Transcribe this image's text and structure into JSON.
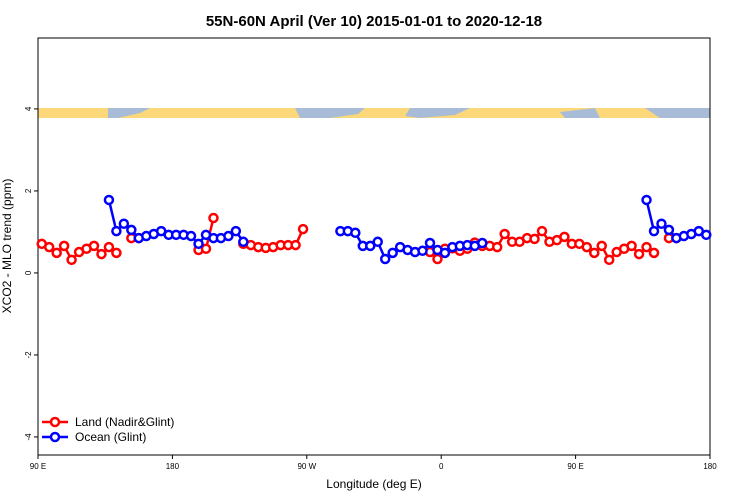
{
  "chart_data": {
    "type": "line",
    "title": "55N-60N April (Ver 10)   2015-01-01 to 2020-12-18",
    "x_label": "Longitude (deg E)",
    "y_label": "XCO2 - MLO trend (ppm)",
    "xlim": [
      90,
      540
    ],
    "ylim": [
      -4.44,
      5.73
    ],
    "xticks": [
      {
        "value": 90,
        "label": "90 E"
      },
      {
        "value": 180,
        "label": "180"
      },
      {
        "value": 270,
        "label": "90 W"
      },
      {
        "value": 360,
        "label": "0"
      },
      {
        "value": 450,
        "label": "90 E"
      },
      {
        "value": 540,
        "label": "180"
      }
    ],
    "yticks": [
      -4,
      -2,
      0,
      2,
      4
    ],
    "legend": "bottom-left",
    "x": [
      92.5,
      97.5,
      102.5,
      107.5,
      112.5,
      117.5,
      122.5,
      127.5,
      132.5,
      137.5,
      142.5,
      147.5,
      152.5,
      157.5,
      162.5,
      167.5,
      172.5,
      177.5,
      182.5,
      187.5,
      192.5,
      197.5,
      202.5,
      207.5,
      212.5,
      217.5,
      222.5,
      227.5,
      232.5,
      237.5,
      242.5,
      247.5,
      252.5,
      257.5,
      262.5,
      267.5,
      272.5,
      277.5,
      282.5,
      287.5,
      292.5,
      297.5,
      302.5,
      307.5,
      312.5,
      317.5,
      322.5,
      327.5,
      332.5,
      337.5,
      342.5,
      347.5,
      352.5,
      357.5,
      362.5,
      367.5,
      372.5,
      377.5,
      382.5,
      387.5,
      392.5,
      397.5,
      402.5,
      407.5,
      412.5,
      417.5,
      422.5,
      427.5,
      432.5,
      437.5,
      442.5,
      447.5,
      452.5,
      457.5,
      462.5,
      467.5,
      472.5,
      477.5,
      482.5,
      487.5,
      492.5,
      497.5,
      502.5,
      507.5,
      512.5,
      517.5,
      522.5,
      527.5,
      532.5,
      537.5
    ],
    "series": [
      {
        "name": "Land (Nadir&Glint)",
        "color": "#ff0000",
        "values": [
          0.71,
          0.63,
          0.49,
          0.66,
          0.32,
          0.51,
          0.59,
          0.66,
          0.46,
          0.63,
          0.49,
          null,
          0.85,
          0.85,
          null,
          null,
          null,
          null,
          null,
          null,
          null,
          0.56,
          0.59,
          1.34,
          null,
          null,
          null,
          0.71,
          0.68,
          0.63,
          0.61,
          0.63,
          0.68,
          0.68,
          0.68,
          1.07,
          null,
          null,
          null,
          null,
          null,
          null,
          null,
          null,
          null,
          null,
          null,
          null,
          null,
          null,
          null,
          null,
          0.51,
          0.34,
          0.59,
          0.6,
          0.54,
          0.59,
          0.74,
          0.66,
          0.66,
          0.63,
          0.95,
          0.76,
          0.76,
          0.85,
          0.83,
          1.02,
          0.76,
          0.8,
          0.88,
          0.71,
          0.71,
          0.63,
          0.49,
          0.66,
          0.32,
          0.51,
          0.59,
          0.66,
          0.46,
          0.63,
          0.49,
          null,
          0.85,
          0.85,
          null,
          null,
          null,
          null
        ]
      },
      {
        "name": "Ocean (Glint)",
        "color": "#0000ff",
        "values": [
          null,
          null,
          null,
          null,
          null,
          null,
          null,
          null,
          null,
          1.78,
          1.02,
          1.2,
          1.05,
          0.85,
          0.9,
          0.95,
          1.02,
          0.93,
          0.93,
          0.93,
          0.9,
          0.71,
          0.93,
          0.85,
          0.85,
          0.9,
          1.02,
          0.76,
          null,
          null,
          null,
          null,
          null,
          null,
          null,
          null,
          null,
          null,
          null,
          null,
          1.02,
          1.02,
          0.98,
          0.66,
          0.66,
          0.76,
          0.34,
          0.49,
          0.63,
          0.56,
          0.51,
          0.54,
          0.73,
          0.56,
          0.49,
          0.63,
          0.66,
          0.68,
          0.66,
          0.73,
          null,
          null,
          null,
          null,
          null,
          null,
          null,
          null,
          null,
          null,
          null,
          null,
          null,
          null,
          null,
          null,
          null,
          null,
          null,
          null,
          null,
          1.78,
          1.02,
          1.2,
          1.05,
          0.85,
          0.9,
          0.95,
          1.02,
          0.93
        ]
      }
    ]
  }
}
